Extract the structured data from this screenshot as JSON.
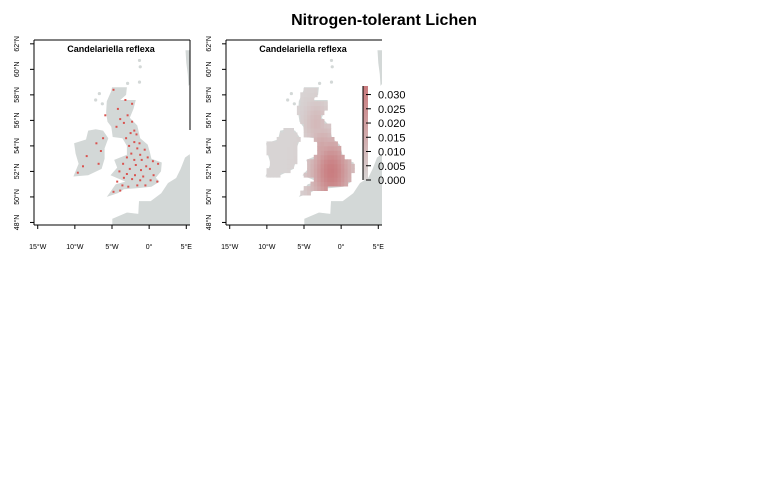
{
  "title": "Nitrogen-tolerant Lichen",
  "colors": {
    "land": "#d3d8d7",
    "europe": "#d3d8d7",
    "record_point": "#d9534f",
    "surface_low": "#d8d4d4",
    "surface_high": "#c97a7d",
    "axis": "#000000",
    "coast_line": "#ffffff"
  },
  "chart_data": [
    {
      "type": "scatter",
      "panel": "records",
      "title": "Candelariella reflexa",
      "xlabel": "",
      "ylabel": "",
      "x_ticks": [
        -15,
        -10,
        -5,
        0,
        5
      ],
      "x_tick_labels": [
        "15°W",
        "10°W",
        "5°W",
        "0°",
        "5°E"
      ],
      "y_ticks": [
        48,
        50,
        52,
        54,
        56,
        58,
        60,
        62
      ],
      "y_tick_labels": [
        "48°N",
        "50°N",
        "52°N",
        "54°N",
        "56°N",
        "58°N",
        "60°N",
        "62°N"
      ],
      "xlim": [
        -15.5,
        5.5
      ],
      "ylim": [
        47.8,
        62.3
      ],
      "grid": false,
      "points": [
        [
          -3.2,
          57.6
        ],
        [
          -2.3,
          57.3
        ],
        [
          -4.2,
          56.9
        ],
        [
          -3.9,
          56.1
        ],
        [
          -2.9,
          56.4
        ],
        [
          -2.3,
          55.9
        ],
        [
          -3.4,
          55.8
        ],
        [
          -4.4,
          55.5
        ],
        [
          -2.0,
          55.2
        ],
        [
          -2.5,
          55.0
        ],
        [
          -1.7,
          54.9
        ],
        [
          -3.1,
          54.6
        ],
        [
          -2.0,
          54.3
        ],
        [
          -1.3,
          54.2
        ],
        [
          -2.7,
          54.0
        ],
        [
          -1.6,
          53.8
        ],
        [
          -0.6,
          53.7
        ],
        [
          -2.4,
          53.4
        ],
        [
          -1.2,
          53.3
        ],
        [
          -3.0,
          53.1
        ],
        [
          -0.2,
          53.1
        ],
        [
          -2.0,
          52.9
        ],
        [
          -1.0,
          52.9
        ],
        [
          0.5,
          52.8
        ],
        [
          -3.5,
          52.6
        ],
        [
          -1.8,
          52.5
        ],
        [
          -0.4,
          52.4
        ],
        [
          1.2,
          52.6
        ],
        [
          -2.6,
          52.2
        ],
        [
          -1.1,
          52.1
        ],
        [
          0.1,
          52.2
        ],
        [
          -4.0,
          52.0
        ],
        [
          -3.0,
          51.8
        ],
        [
          -1.9,
          51.7
        ],
        [
          -0.8,
          51.6
        ],
        [
          0.6,
          51.7
        ],
        [
          -3.4,
          51.5
        ],
        [
          -2.3,
          51.4
        ],
        [
          -1.2,
          51.3
        ],
        [
          0.2,
          51.3
        ],
        [
          1.1,
          51.2
        ],
        [
          -4.3,
          51.2
        ],
        [
          -3.6,
          50.9
        ],
        [
          -2.8,
          50.8
        ],
        [
          -1.6,
          50.9
        ],
        [
          -0.5,
          50.9
        ],
        [
          -4.8,
          50.4
        ],
        [
          -3.9,
          50.5
        ],
        [
          -6.2,
          54.6
        ],
        [
          -7.1,
          54.2
        ],
        [
          -6.5,
          53.6
        ],
        [
          -8.4,
          53.2
        ],
        [
          -6.8,
          52.6
        ],
        [
          -8.9,
          52.4
        ],
        [
          -9.6,
          51.9
        ],
        [
          -5.9,
          56.4
        ],
        [
          -4.8,
          58.4
        ]
      ]
    },
    {
      "type": "heatmap",
      "panel": "modelled",
      "title": "Candelariella reflexa",
      "xlabel": "",
      "ylabel": "",
      "x_ticks": [
        -15,
        -10,
        -5,
        0,
        5
      ],
      "x_tick_labels": [
        "15°W",
        "10°W",
        "5°W",
        "0°",
        "5°E"
      ],
      "y_ticks": [
        48,
        50,
        52,
        54,
        56,
        58,
        60,
        62
      ],
      "y_tick_labels": [
        "48°N",
        "50°N",
        "52°N",
        "54°N",
        "56°N",
        "58°N",
        "60°N",
        "62°N"
      ],
      "xlim": [
        -15.5,
        5.5
      ],
      "ylim": [
        47.8,
        62.3
      ],
      "grid": false,
      "colorbar": {
        "ticks": [
          0.0,
          0.005,
          0.01,
          0.015,
          0.02,
          0.025,
          0.03
        ],
        "tick_labels": [
          "0.000",
          "0.005",
          "0.010",
          "0.015",
          "0.020",
          "0.025",
          "0.030"
        ],
        "range": [
          0.0,
          0.033
        ]
      },
      "hotspots": [
        {
          "lon": -1.3,
          "lat": 52.0,
          "value": 0.032,
          "spread": 1.9
        },
        {
          "lon": -2.5,
          "lat": 53.6,
          "value": 0.018,
          "spread": 1.4
        },
        {
          "lon": -3.3,
          "lat": 55.8,
          "value": 0.01,
          "spread": 1.2
        }
      ]
    }
  ]
}
